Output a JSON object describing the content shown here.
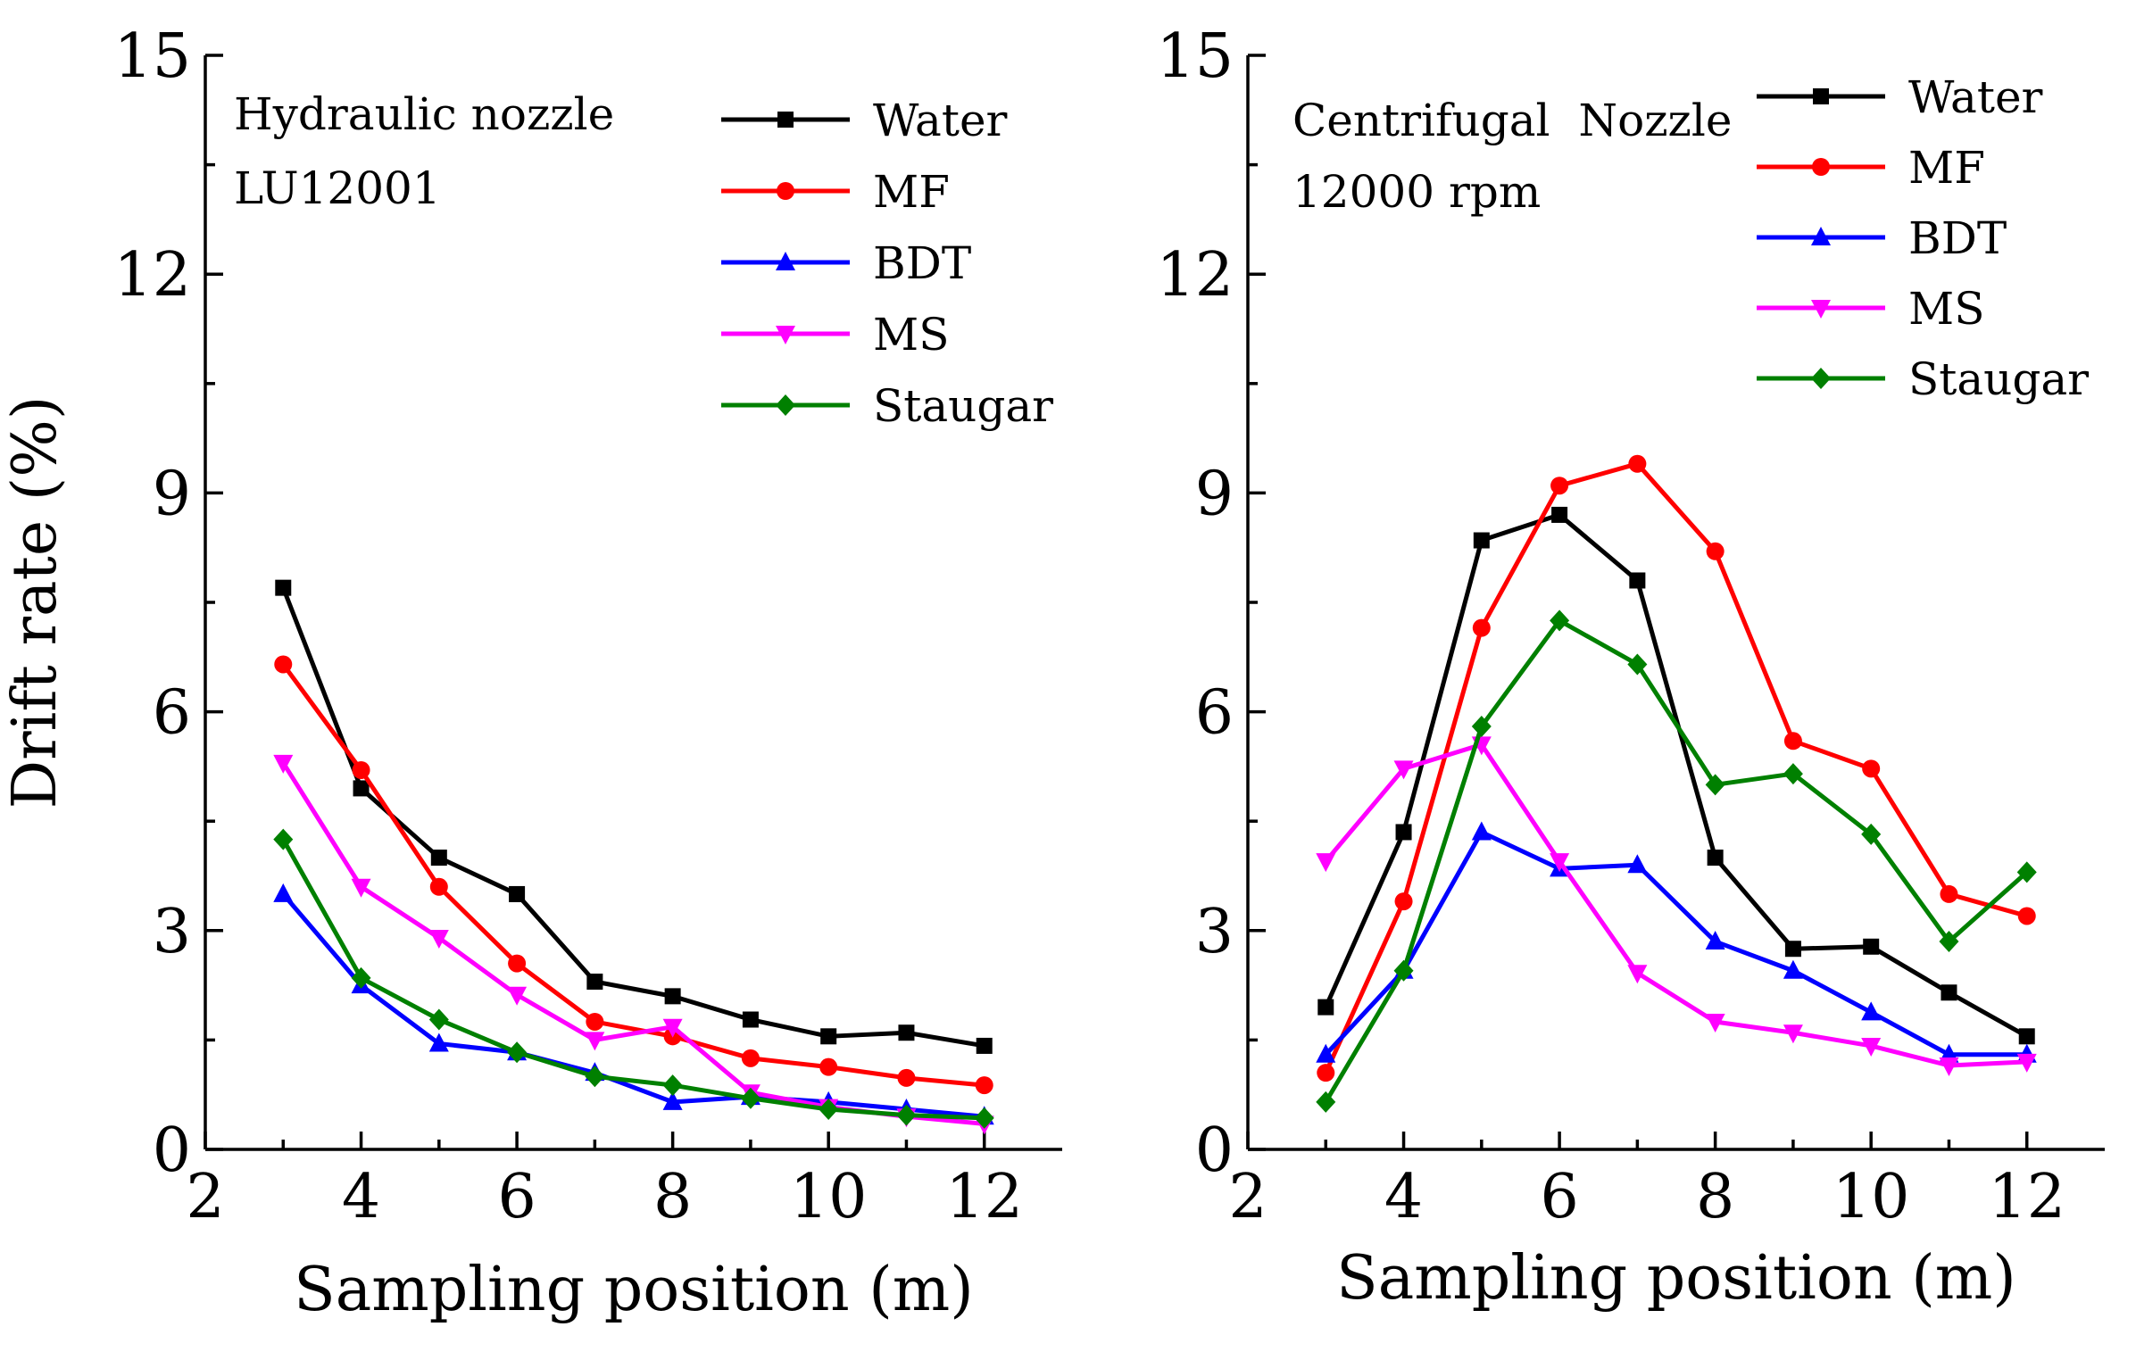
{
  "colors": {
    "Water": "#000000",
    "MF": "#ff0000",
    "BDT": "#0000ff",
    "MS": "#ff00ff",
    "Staugar": "#008000"
  },
  "chart_data": [
    {
      "type": "line",
      "annotation": [
        "Hydraulic nozzle",
        "LU12001"
      ],
      "xlabel": "Sampling position (m)",
      "ylabel": "Drift rate (%)",
      "xlim": [
        2,
        13
      ],
      "ylim": [
        0,
        15
      ],
      "xticks": [
        2,
        4,
        6,
        8,
        10,
        12
      ],
      "yticks": [
        0,
        3,
        6,
        9,
        12,
        15
      ],
      "grid": false,
      "legend_position": "top-right",
      "x": [
        3,
        4,
        5,
        6,
        7,
        8,
        9,
        10,
        11,
        12
      ],
      "series": [
        {
          "name": "Water",
          "marker": "square",
          "values": [
            7.7,
            4.95,
            4.0,
            3.5,
            2.3,
            2.1,
            1.78,
            1.55,
            1.6,
            1.42
          ]
        },
        {
          "name": "MF",
          "marker": "circle",
          "values": [
            6.65,
            5.2,
            3.6,
            2.55,
            1.75,
            1.55,
            1.25,
            1.13,
            0.98,
            0.88
          ]
        },
        {
          "name": "BDT",
          "marker": "triangle-up",
          "values": [
            3.5,
            2.25,
            1.45,
            1.33,
            1.05,
            0.65,
            0.72,
            0.65,
            0.55,
            0.45
          ]
        },
        {
          "name": "MS",
          "marker": "triangle-down",
          "values": [
            5.3,
            3.6,
            2.9,
            2.12,
            1.5,
            1.68,
            0.78,
            0.58,
            0.45,
            0.35
          ]
        },
        {
          "name": "Staugar",
          "marker": "diamond",
          "values": [
            4.25,
            2.35,
            1.78,
            1.33,
            1.0,
            0.88,
            0.7,
            0.55,
            0.47,
            0.43
          ]
        }
      ]
    },
    {
      "type": "line",
      "annotation": [
        "Centrifugal  Nozzle",
        "12000 rpm"
      ],
      "xlabel": "Sampling position (m)",
      "ylabel": "",
      "xlim": [
        2,
        13
      ],
      "ylim": [
        0,
        15
      ],
      "xticks": [
        2,
        4,
        6,
        8,
        10,
        12
      ],
      "yticks": [
        0,
        3,
        6,
        9,
        12,
        15
      ],
      "grid": false,
      "legend_position": "top-right",
      "x": [
        3,
        4,
        5,
        6,
        7,
        8,
        9,
        10,
        11,
        12
      ],
      "series": [
        {
          "name": "Water",
          "marker": "square",
          "values": [
            1.95,
            4.35,
            8.35,
            8.7,
            7.8,
            4.0,
            2.75,
            2.78,
            2.15,
            1.55
          ]
        },
        {
          "name": "MF",
          "marker": "circle",
          "values": [
            1.05,
            3.4,
            7.15,
            9.1,
            9.4,
            8.2,
            5.6,
            5.22,
            3.5,
            3.2
          ]
        },
        {
          "name": "BDT",
          "marker": "triangle-up",
          "values": [
            1.3,
            2.45,
            4.35,
            3.85,
            3.9,
            2.85,
            2.45,
            1.88,
            1.3,
            1.3
          ]
        },
        {
          "name": "MS",
          "marker": "triangle-down",
          "values": [
            3.95,
            5.22,
            5.55,
            3.95,
            2.42,
            1.75,
            1.6,
            1.42,
            1.15,
            1.2
          ]
        },
        {
          "name": "Staugar",
          "marker": "diamond",
          "values": [
            0.65,
            2.45,
            5.8,
            7.25,
            6.65,
            5.0,
            5.15,
            4.32,
            2.85,
            3.8
          ]
        }
      ]
    }
  ]
}
